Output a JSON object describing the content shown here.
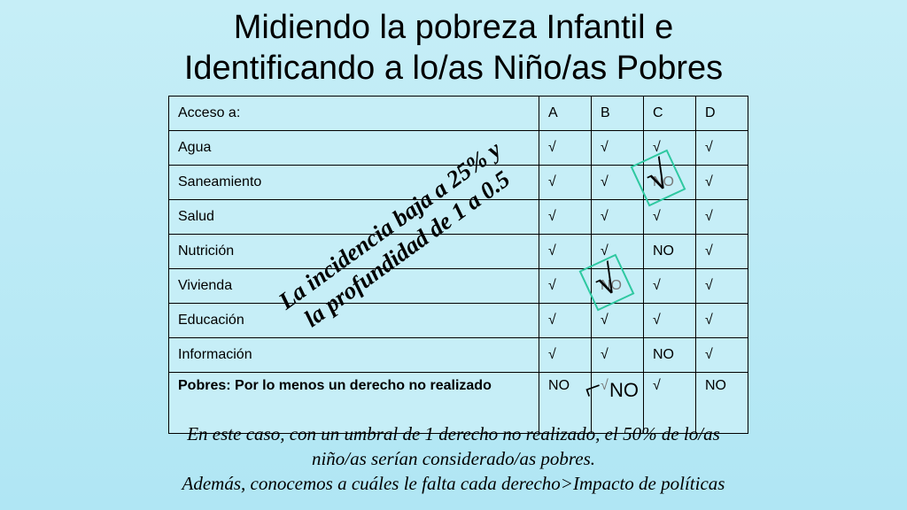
{
  "title": {
    "line1": "Midiendo la pobreza Infantil e",
    "line2": "Identificando a lo/as Niño/as Pobres"
  },
  "table": {
    "header": [
      "Acceso a:",
      "A",
      "B",
      "C",
      "D"
    ],
    "rows": [
      [
        "Agua",
        "√",
        "√",
        "√",
        "√"
      ],
      [
        "Saneamiento",
        "√",
        "√",
        "NO",
        "√"
      ],
      [
        "Salud",
        "√",
        "√",
        "√",
        "√"
      ],
      [
        "Nutrición",
        "√",
        "√",
        "NO",
        "√"
      ],
      [
        "Vivienda",
        "√",
        "NO",
        "√",
        "√"
      ],
      [
        "Educación",
        "√",
        "√",
        "√",
        "√"
      ],
      [
        "Información",
        "√",
        "√",
        "NO",
        "√"
      ],
      [
        "Pobres: Por lo menos un derecho no realizado",
        "NO",
        "√",
        "√",
        "NO"
      ]
    ]
  },
  "annotation": {
    "line1": "La incidencia  baja a 25% y",
    "line2": "la profundidad de 1 a 0.5",
    "check_mark": "√",
    "hook_mark": "⌐",
    "correction": "NO"
  },
  "caption": {
    "line1": "En este caso, con un umbral de 1 derecho no realizado, el 50% de lo/as",
    "line2": "niño/as serían considerado/as pobres.",
    "line3": "Además, conocemos a cuáles le falta cada derecho>Impacto de políticas"
  }
}
